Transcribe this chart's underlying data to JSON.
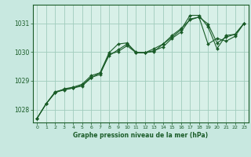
{
  "title": "Graphe pression niveau de la mer (hPa)",
  "bg_color": "#c8e8e0",
  "plot_bg_color": "#d8f0e8",
  "grid_color": "#a0ccbc",
  "line_color": "#1a5c28",
  "marker_color": "#1a5c28",
  "xlim": [
    -0.5,
    23.5
  ],
  "ylim": [
    1027.55,
    1031.65
  ],
  "yticks": [
    1028,
    1029,
    1030,
    1031
  ],
  "xticks": [
    0,
    1,
    2,
    3,
    4,
    5,
    6,
    7,
    8,
    9,
    10,
    11,
    12,
    13,
    14,
    15,
    16,
    17,
    18,
    19,
    20,
    21,
    22,
    23
  ],
  "series1": [
    1027.7,
    1028.2,
    1028.6,
    1028.68,
    1028.75,
    1028.82,
    1029.1,
    1029.28,
    1029.88,
    1030.08,
    1030.28,
    1030.0,
    1029.98,
    1030.05,
    1030.18,
    1030.48,
    1030.7,
    1031.15,
    1031.22,
    1030.28,
    1030.48,
    1030.38,
    1030.55,
    1031.0
  ],
  "series2": [
    1027.7,
    1028.2,
    1028.62,
    1028.7,
    1028.75,
    1028.85,
    1029.12,
    1029.22,
    1029.92,
    1030.02,
    1030.22,
    1029.98,
    1029.98,
    1030.02,
    1030.28,
    1030.52,
    1030.78,
    1031.28,
    1031.28,
    1030.88,
    1030.12,
    1030.58,
    1030.62,
    1031.0
  ],
  "series3": [
    1027.7,
    1028.2,
    1028.58,
    1028.72,
    1028.78,
    1028.88,
    1029.18,
    1029.28,
    1029.98,
    1030.28,
    1030.32,
    1029.98,
    1029.98,
    1030.12,
    1030.28,
    1030.58,
    1030.82,
    1031.12,
    1031.22,
    1030.98,
    1030.32,
    1030.52,
    1030.62,
    1031.0
  ]
}
